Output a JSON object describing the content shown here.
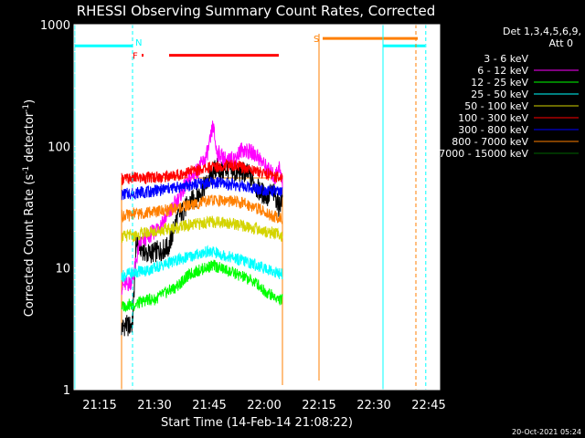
{
  "chart_data": {
    "type": "line",
    "title": "RHESSI Observing Summary Count Rates, Corrected",
    "xlabel": "Start Time (14-Feb-14 21:08:22)",
    "ylabel_main": "Corrected Count Rate (s",
    "ylabel_sup1": "-1",
    "ylabel_mid": " detector",
    "ylabel_sup2": "-1",
    "ylabel_end": ")",
    "y_scale": "log",
    "ylim": [
      1,
      1000
    ],
    "xlim": [
      "21:08",
      "22:48"
    ],
    "x_ticks": [
      {
        "label": "21:15",
        "min": 7
      },
      {
        "label": "21:30",
        "min": 22
      },
      {
        "label": "21:45",
        "min": 37
      },
      {
        "label": "22:00",
        "min": 52
      },
      {
        "label": "22:15",
        "min": 67
      },
      {
        "label": "22:30",
        "min": 82
      },
      {
        "label": "22:45",
        "min": 97
      }
    ],
    "y_ticks": [
      {
        "label": "1",
        "value": 1
      },
      {
        "label": "10",
        "value": 10
      },
      {
        "label": "100",
        "value": 100
      },
      {
        "label": "1000",
        "value": 1000
      }
    ],
    "legend": {
      "header1": "Det 1,3,4,5,6,9,",
      "header2": "Att 0",
      "entries": [
        {
          "label": "3 - 6 keV",
          "color": "#000000"
        },
        {
          "label": "6 - 12 keV",
          "color": "#ff00ff"
        },
        {
          "label": "12 - 25 keV",
          "color": "#00ff00"
        },
        {
          "label": "25 - 50 keV",
          "color": "#00ffff"
        },
        {
          "label": "50 - 100 keV",
          "color": "#d4d400"
        },
        {
          "label": "100 - 300 keV",
          "color": "#ff0000"
        },
        {
          "label": "300 - 800 keV",
          "color": "#0000ff"
        },
        {
          "label": "800 - 7000 keV",
          "color": "#ff7f00"
        },
        {
          "label": "7000 - 15000 keV",
          "color": "#006400"
        }
      ]
    },
    "series": [
      {
        "name": "3 - 6 keV",
        "color": "#000000",
        "x_min": [
          13,
          14,
          15,
          16,
          17,
          18,
          20,
          22,
          24,
          26,
          28,
          30,
          32,
          34,
          36,
          38,
          39,
          40,
          42,
          44,
          46,
          48,
          50,
          52,
          53,
          54,
          55,
          56,
          57
        ],
        "values": [
          3.2,
          3.4,
          3.3,
          3.5,
          16,
          15,
          13,
          13.5,
          14,
          15,
          25,
          30,
          35,
          40,
          48,
          60,
          68,
          62,
          65,
          60,
          62,
          58,
          45,
          40,
          38,
          42,
          40,
          32,
          38
        ]
      },
      {
        "name": "6 - 12 keV",
        "color": "#ff00ff",
        "x_min": [
          13,
          15,
          16,
          18,
          20,
          22,
          24,
          26,
          28,
          30,
          32,
          34,
          36,
          37,
          38,
          39,
          40,
          42,
          44,
          46,
          48,
          50,
          52,
          54,
          55,
          56,
          57
        ],
        "values": [
          7,
          7.5,
          8,
          16,
          18,
          20,
          24,
          28,
          35,
          45,
          55,
          65,
          80,
          100,
          150,
          90,
          85,
          75,
          80,
          95,
          90,
          85,
          70,
          60,
          55,
          70,
          50
        ]
      },
      {
        "name": "12 - 25 keV",
        "color": "#00ff00",
        "x_min": [
          13,
          15,
          16,
          18,
          20,
          22,
          24,
          26,
          28,
          30,
          32,
          34,
          36,
          38,
          40,
          42,
          44,
          46,
          48,
          50,
          52,
          54,
          56,
          57
        ],
        "values": [
          4.8,
          5,
          4.9,
          5.2,
          5.5,
          5.5,
          6,
          6.5,
          7,
          8,
          9,
          9.5,
          10,
          10.5,
          10,
          9.5,
          9,
          8.5,
          8,
          7.5,
          6.5,
          6,
          5.5,
          5.5
        ]
      },
      {
        "name": "25 - 50 keV",
        "color": "#00ffff",
        "x_min": [
          13,
          15,
          16,
          18,
          20,
          22,
          24,
          26,
          28,
          30,
          32,
          34,
          36,
          38,
          40,
          42,
          44,
          46,
          48,
          50,
          52,
          54,
          56,
          57
        ],
        "values": [
          8.5,
          9,
          9,
          9.5,
          9.5,
          10,
          10.5,
          11,
          11.5,
          12,
          12.5,
          13,
          13.5,
          13.5,
          13,
          12.5,
          12,
          11.5,
          11,
          10.5,
          10,
          9.5,
          9,
          9
        ]
      },
      {
        "name": "50 - 100 keV",
        "color": "#d4d400",
        "x_min": [
          13,
          15,
          16,
          18,
          20,
          22,
          24,
          26,
          28,
          30,
          32,
          34,
          36,
          38,
          40,
          42,
          44,
          46,
          48,
          50,
          52,
          54,
          56,
          57
        ],
        "values": [
          18,
          18.5,
          18,
          19,
          19.5,
          20,
          20.5,
          21,
          21.5,
          22,
          22.5,
          23,
          23.5,
          24,
          24,
          23.5,
          23,
          22,
          21.5,
          21,
          20,
          19.5,
          19,
          18
        ]
      },
      {
        "name": "100 - 300 keV",
        "color": "#ff0000",
        "x_min": [
          13,
          15,
          16,
          18,
          20,
          22,
          24,
          26,
          28,
          30,
          32,
          34,
          36,
          38,
          40,
          42,
          44,
          46,
          48,
          50,
          52,
          54,
          56,
          57
        ],
        "values": [
          54,
          54,
          55,
          55,
          55,
          56,
          56,
          57,
          58,
          60,
          62,
          64,
          66,
          68,
          69,
          70,
          69,
          67,
          65,
          62,
          60,
          58,
          56,
          55
        ]
      },
      {
        "name": "300 - 800 keV",
        "color": "#0000ff",
        "x_min": [
          13,
          15,
          16,
          18,
          20,
          22,
          24,
          26,
          28,
          30,
          32,
          34,
          36,
          38,
          40,
          42,
          44,
          46,
          48,
          50,
          52,
          54,
          56,
          57
        ],
        "values": [
          40,
          41,
          41,
          42,
          42,
          43,
          44,
          45,
          46,
          47,
          48,
          49,
          50,
          50,
          50,
          49,
          48,
          47,
          46,
          45,
          44,
          43,
          42,
          41
        ]
      },
      {
        "name": "800 - 7000 keV",
        "color": "#ff7f00",
        "x_min": [
          13,
          15,
          16,
          18,
          20,
          22,
          24,
          26,
          28,
          30,
          32,
          34,
          36,
          38,
          40,
          42,
          44,
          46,
          48,
          50,
          52,
          54,
          56,
          57
        ],
        "values": [
          27,
          27,
          28,
          28,
          28.5,
          29,
          29.5,
          30,
          31,
          32,
          33,
          34,
          35,
          36,
          36,
          35.5,
          35,
          34,
          33,
          31,
          29,
          27,
          26,
          25
        ]
      },
      {
        "name": "7000 - 15000 keV",
        "color": "#006400",
        "x_min": [
          13,
          14,
          57
        ],
        "values": [
          1.0,
          1.0,
          1.0
        ]
      }
    ],
    "onset_drop": {
      "x_min": 13,
      "from": 1,
      "to": 3,
      "color": "#00ff00"
    },
    "box_outline": {
      "x_min_start": 13,
      "x_min_end": 57,
      "top_value": 55,
      "color": "#ff7f00"
    },
    "bars": [
      {
        "label": "F",
        "color": "#ff0000",
        "x_start_min": 18.5,
        "x_end_min": 19,
        "level": 560,
        "thick": true
      },
      {
        "label": "",
        "color": "#ff0000",
        "x_start_min": 26,
        "x_end_min": 56,
        "level": 560,
        "thick": true
      },
      {
        "label": "S",
        "color": "#ff7f00",
        "x_start_min": 68,
        "x_end_min": 94,
        "level": 770,
        "thick": true
      },
      {
        "label": "",
        "color": "#00ffff",
        "x_start_min": 0,
        "x_end_min": 16,
        "level": 670,
        "thick": true
      },
      {
        "label": "",
        "color": "#00ffff",
        "x_start_min": 84.5,
        "x_end_min": 96,
        "level": 670,
        "thick": true
      }
    ],
    "vlines": [
      {
        "x_min": 0.2,
        "color": "#00ffff",
        "style": "solid",
        "label": ""
      },
      {
        "x_min": 16,
        "color": "#00ffff",
        "style": "dashed",
        "label": "N"
      },
      {
        "x_min": 67,
        "color": "#ff7f00",
        "style": "solid",
        "label": ""
      },
      {
        "x_min": 84.5,
        "color": "#00ffff",
        "style": "solid",
        "label": ""
      },
      {
        "x_min": 93.5,
        "color": "#ff7f00",
        "style": "dashed",
        "label": ""
      },
      {
        "x_min": 96.2,
        "color": "#00ffff",
        "style": "dashed",
        "label": ""
      }
    ]
  },
  "footer": {
    "timestamp": "20-Oct-2021 05:24"
  }
}
